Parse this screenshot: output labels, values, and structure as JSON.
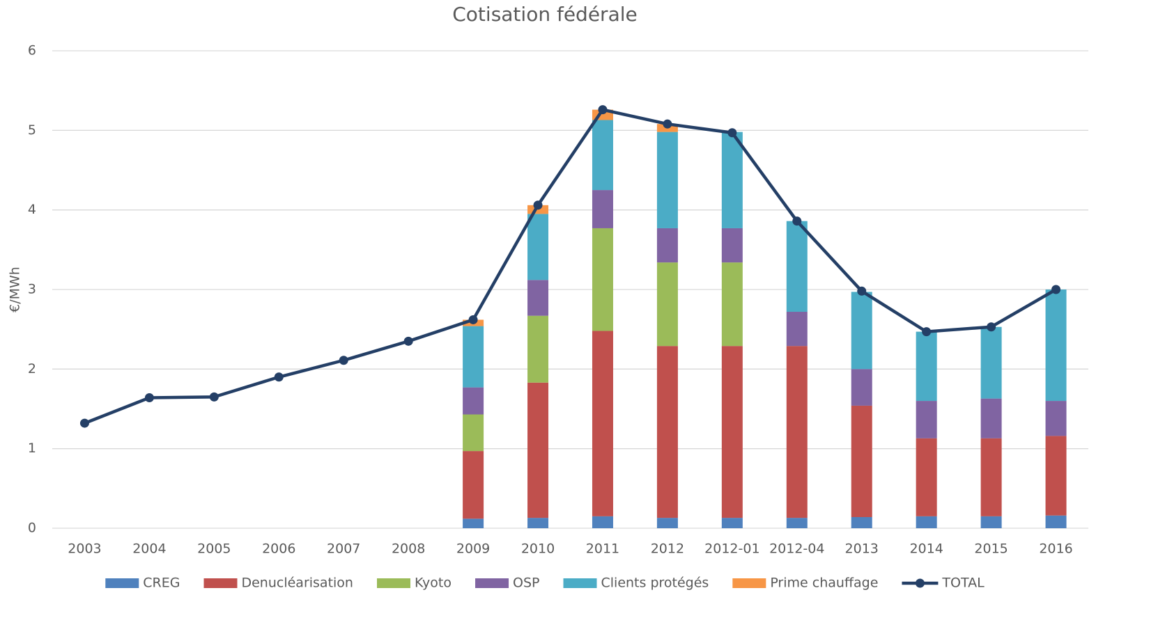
{
  "chart_data": {
    "type": "bar",
    "stacked": true,
    "title": "Cotisation fédérale",
    "y_label": "€/MWh",
    "categories": [
      "2003",
      "2004",
      "2005",
      "2006",
      "2007",
      "2008",
      "2009",
      "2010",
      "2011",
      "2012",
      "2012-01",
      "2012-04",
      "2013",
      "2014",
      "2015",
      "2016"
    ],
    "series": [
      {
        "name": "CREG",
        "color": "#4f81bd",
        "values": [
          null,
          null,
          null,
          null,
          null,
          null,
          0.12,
          0.13,
          0.15,
          0.13,
          0.13,
          0.13,
          0.14,
          0.15,
          0.15,
          0.16
        ]
      },
      {
        "name": "Denucléarisation",
        "color": "#c0504d",
        "values": [
          null,
          null,
          null,
          null,
          null,
          null,
          0.85,
          1.7,
          2.33,
          2.16,
          2.16,
          2.16,
          1.4,
          0.98,
          0.98,
          1.0
        ]
      },
      {
        "name": "Kyoto",
        "color": "#9bbb59",
        "values": [
          null,
          null,
          null,
          null,
          null,
          null,
          0.46,
          0.84,
          1.29,
          1.05,
          1.05,
          null,
          null,
          null,
          null,
          null
        ]
      },
      {
        "name": "OSP",
        "color": "#8064a2",
        "values": [
          null,
          null,
          null,
          null,
          null,
          null,
          0.34,
          0.45,
          0.48,
          0.43,
          0.43,
          0.43,
          0.46,
          0.47,
          0.5,
          0.44
        ]
      },
      {
        "name": "Clients protégés",
        "color": "#4bacc6",
        "values": [
          null,
          null,
          null,
          null,
          null,
          null,
          0.77,
          0.83,
          0.88,
          1.21,
          1.21,
          1.14,
          0.97,
          0.87,
          0.9,
          1.4
        ]
      },
      {
        "name": "Prime chauffage",
        "color": "#f79646",
        "values": [
          null,
          null,
          null,
          null,
          null,
          null,
          0.08,
          0.11,
          0.13,
          0.1,
          null,
          null,
          null,
          null,
          null,
          null
        ]
      },
      {
        "name": "TOTAL",
        "type": "line",
        "color": "#243f66",
        "values": [
          1.32,
          1.64,
          1.65,
          1.9,
          2.11,
          2.35,
          2.62,
          4.06,
          5.26,
          5.08,
          4.97,
          3.86,
          2.98,
          2.47,
          2.53,
          3.0
        ]
      }
    ],
    "ylim": [
      0,
      6
    ],
    "yticks": [
      0,
      1,
      2,
      3,
      4,
      5,
      6
    ],
    "grid": true,
    "legend": "bottom"
  }
}
